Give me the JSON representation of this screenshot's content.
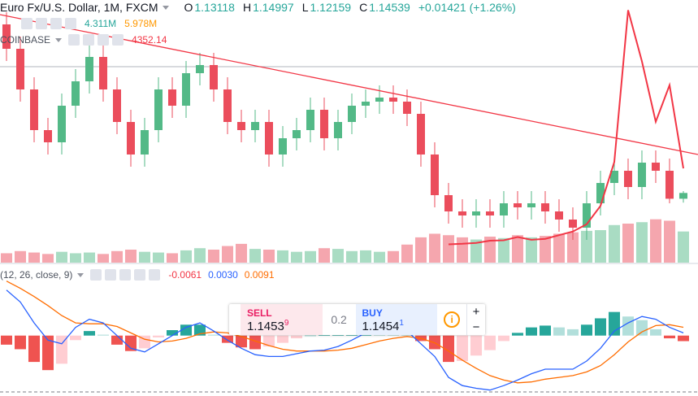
{
  "chart_data": {
    "type": "candlestick",
    "title": "Euro Fx/U.S. Dollar, 1M, FXCM",
    "ohlc_labels": [
      "O",
      "H",
      "L",
      "C"
    ],
    "change": {
      "value": 0.01421,
      "label": "+0.01421"
    },
    "change_pct": {
      "value": 1.26,
      "label": "(+1.26%)"
    },
    "xlim": [
      -0.47,
      50.06
    ],
    "ylim": [
      0.974,
      1.62
    ],
    "up_color": "#53b987",
    "down_color": "#eb4d5c",
    "candles": [
      [
        1.56,
        1.59,
        1.47,
        1.5
      ],
      [
        1.5,
        1.53,
        1.37,
        1.4
      ],
      [
        1.4,
        1.43,
        1.27,
        1.3
      ],
      [
        1.3,
        1.33,
        1.24,
        1.27
      ],
      [
        1.27,
        1.39,
        1.24,
        1.36
      ],
      [
        1.36,
        1.45,
        1.33,
        1.42
      ],
      [
        1.42,
        1.51,
        1.39,
        1.48
      ],
      [
        1.48,
        1.51,
        1.37,
        1.4
      ],
      [
        1.4,
        1.43,
        1.29,
        1.32
      ],
      [
        1.32,
        1.35,
        1.21,
        1.24
      ],
      [
        1.24,
        1.33,
        1.21,
        1.3
      ],
      [
        1.3,
        1.43,
        1.27,
        1.4
      ],
      [
        1.4,
        1.43,
        1.33,
        1.36
      ],
      [
        1.36,
        1.47,
        1.33,
        1.44
      ],
      [
        1.44,
        1.49,
        1.41,
        1.46
      ],
      [
        1.46,
        1.49,
        1.37,
        1.4
      ],
      [
        1.4,
        1.43,
        1.29,
        1.32
      ],
      [
        1.32,
        1.35,
        1.27,
        1.3
      ],
      [
        1.3,
        1.35,
        1.27,
        1.32
      ],
      [
        1.32,
        1.35,
        1.21,
        1.24
      ],
      [
        1.24,
        1.31,
        1.21,
        1.28
      ],
      [
        1.28,
        1.33,
        1.25,
        1.3
      ],
      [
        1.3,
        1.38,
        1.27,
        1.35
      ],
      [
        1.35,
        1.38,
        1.25,
        1.28
      ],
      [
        1.28,
        1.35,
        1.25,
        1.32
      ],
      [
        1.32,
        1.39,
        1.29,
        1.36
      ],
      [
        1.36,
        1.4,
        1.33,
        1.37
      ],
      [
        1.37,
        1.41,
        1.34,
        1.38
      ],
      [
        1.38,
        1.41,
        1.34,
        1.37
      ],
      [
        1.37,
        1.4,
        1.31,
        1.34
      ],
      [
        1.34,
        1.37,
        1.21,
        1.24
      ],
      [
        1.24,
        1.27,
        1.11,
        1.14
      ],
      [
        1.14,
        1.17,
        1.07,
        1.1
      ],
      [
        1.1,
        1.13,
        1.06,
        1.09
      ],
      [
        1.09,
        1.13,
        1.06,
        1.1
      ],
      [
        1.1,
        1.13,
        1.06,
        1.09
      ],
      [
        1.09,
        1.15,
        1.06,
        1.12
      ],
      [
        1.12,
        1.15,
        1.08,
        1.11
      ],
      [
        1.11,
        1.15,
        1.08,
        1.12
      ],
      [
        1.12,
        1.15,
        1.07,
        1.1
      ],
      [
        1.1,
        1.13,
        1.05,
        1.08
      ],
      [
        1.08,
        1.11,
        1.03,
        1.06
      ],
      [
        1.06,
        1.15,
        1.03,
        1.12
      ],
      [
        1.12,
        1.2,
        1.09,
        1.17
      ],
      [
        1.17,
        1.23,
        1.14,
        1.2
      ],
      [
        1.2,
        1.23,
        1.13,
        1.16
      ],
      [
        1.16,
        1.25,
        1.13,
        1.22
      ],
      [
        1.22,
        1.25,
        1.17,
        1.2
      ],
      [
        1.2,
        1.23,
        1.12,
        1.13118
      ],
      [
        1.13118,
        1.14997,
        1.12159,
        1.14539
      ]
    ],
    "trendline": {
      "x": [
        -0.47,
        50.06
      ],
      "y": [
        1.584,
        1.24
      ],
      "color": "#f23645"
    },
    "price_line": {
      "value": 1.456,
      "color": "#b2b5be"
    },
    "volume": {
      "vlim": [
        0,
        9
      ],
      "up_color": "#a9dcc3",
      "down_color": "#f5a6ae",
      "last": {
        "value": 4.311,
        "label": "4.311M"
      },
      "ma": {
        "value": 5.978,
        "label": "5.978M"
      },
      "values": [
        1.3,
        1.6,
        1.4,
        1.2,
        1.5,
        1.3,
        1.4,
        1.2,
        1.6,
        1.8,
        1.5,
        1.4,
        1.3,
        1.7,
        2.0,
        1.8,
        2.3,
        2.6,
        1.9,
        1.8,
        1.7,
        1.5,
        1.6,
        2.0,
        1.9,
        1.6,
        1.7,
        1.5,
        1.6,
        2.5,
        3.5,
        4.0,
        3.8,
        3.5,
        3.2,
        3.6,
        3.4,
        3.8,
        3.5,
        3.7,
        4.0,
        4.2,
        4.4,
        4.5,
        5.2,
        5.4,
        5.6,
        6.0,
        5.8,
        4.311
      ]
    },
    "overlay": {
      "name": "COINBASE",
      "last_label": "4352.14",
      "color": "#f23645",
      "y2lim": [
        -800,
        13555
      ],
      "values": [
        null,
        null,
        null,
        null,
        null,
        null,
        null,
        null,
        null,
        null,
        null,
        null,
        null,
        null,
        null,
        null,
        null,
        null,
        null,
        null,
        null,
        null,
        null,
        null,
        null,
        null,
        null,
        null,
        null,
        null,
        null,
        null,
        200,
        230,
        280,
        400,
        420,
        600,
        450,
        500,
        700,
        900,
        1300,
        2300,
        4700,
        13000,
        10200,
        6900,
        8900,
        4352.14
      ]
    },
    "macd": {
      "name": "(12, 26, close, 9)",
      "lim": [
        -0.0665,
        0.0785
      ],
      "legend": [
        {
          "value": -0.0061,
          "label": "-0.0061",
          "color": "#f23645"
        },
        {
          "value": 0.003,
          "label": "0.0030",
          "color": "#2962ff"
        },
        {
          "value": 0.0091,
          "label": "0.0091",
          "color": "#ff6d00"
        }
      ],
      "macd_color": "#2962ff",
      "signal_color": "#ff6d00",
      "hist_colors": [
        "#26a69a",
        "#b2dfdb",
        "#ffcdd2",
        "#ef5350"
      ],
      "histogram": [
        -0.01,
        -0.015,
        -0.029,
        -0.038,
        -0.031,
        -0.005,
        0.005,
        0.001,
        -0.01,
        -0.017,
        -0.014,
        -0.002,
        0.006,
        0.012,
        0.012,
        0.001,
        -0.008,
        -0.013,
        -0.015,
        -0.012,
        -0.008,
        -0.003,
        0,
        0.001,
        0.004,
        0.009,
        0.013,
        0.012,
        0.009,
        0.006,
        -0.006,
        -0.015,
        -0.029,
        -0.028,
        -0.022,
        -0.016,
        -0.006,
        0.003,
        0.009,
        0.011,
        0.009,
        0.007,
        0.012,
        0.019,
        0.026,
        0.021,
        0.017,
        0.007,
        -0.003,
        -0.0061
      ],
      "macd": [
        0.05,
        0.037,
        0.014,
        -0.005,
        -0.009,
        0.009,
        0.018,
        0.014,
        0,
        -0.014,
        -0.018,
        -0.009,
        0,
        0.009,
        0.014,
        0.005,
        -0.005,
        -0.014,
        -0.021,
        -0.023,
        -0.023,
        -0.02,
        -0.017,
        -0.016,
        -0.012,
        -0.005,
        0.003,
        0.006,
        0.006,
        0.005,
        -0.009,
        -0.023,
        -0.046,
        -0.055,
        -0.058,
        -0.06,
        -0.055,
        -0.049,
        -0.042,
        -0.037,
        -0.037,
        -0.037,
        -0.028,
        -0.014,
        0.005,
        0.014,
        0.021,
        0.018,
        0.009,
        0.003
      ],
      "signal": [
        0.06,
        0.052,
        0.043,
        0.033,
        0.022,
        0.014,
        0.013,
        0.013,
        0.01,
        0.003,
        -0.004,
        -0.007,
        -0.006,
        -0.003,
        0.002,
        0.004,
        0.003,
        -0.001,
        -0.006,
        -0.011,
        -0.015,
        -0.017,
        -0.017,
        -0.017,
        -0.016,
        -0.014,
        -0.01,
        -0.006,
        -0.003,
        -0.001,
        -0.003,
        -0.008,
        -0.017,
        -0.027,
        -0.036,
        -0.044,
        -0.049,
        -0.052,
        -0.051,
        -0.048,
        -0.046,
        -0.044,
        -0.04,
        -0.033,
        -0.021,
        -0.007,
        0.004,
        0.011,
        0.012,
        0.0091
      ]
    },
    "trade": {
      "sell_label": "SELL",
      "sell_price": "1.1453",
      "sell_pip": "9",
      "spread": 0.2,
      "buy_label": "BUY",
      "buy_price": "1.1454",
      "buy_pip": "1"
    }
  }
}
